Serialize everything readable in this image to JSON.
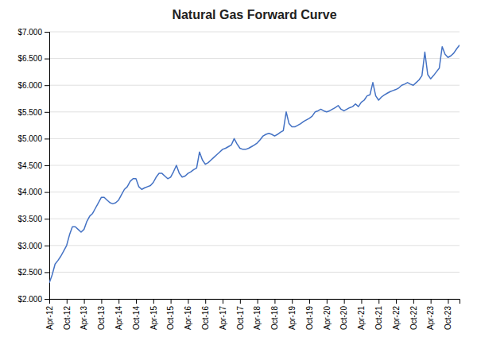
{
  "chart_data": {
    "type": "line",
    "title": "Natural Gas Forward Curve",
    "color": "#4472C4",
    "categories": [
      "Apr-12",
      null,
      null,
      null,
      null,
      null,
      "Oct-12",
      null,
      null,
      null,
      null,
      null,
      "Apr-13",
      null,
      null,
      null,
      null,
      null,
      "Oct-13",
      null,
      null,
      null,
      null,
      null,
      "Apr-14",
      null,
      null,
      null,
      null,
      null,
      "Oct-14",
      null,
      null,
      null,
      null,
      null,
      "Apr-15",
      null,
      null,
      null,
      null,
      null,
      "Oct-15",
      null,
      null,
      null,
      null,
      null,
      "Apr-16",
      null,
      null,
      null,
      null,
      null,
      "Oct-16",
      null,
      null,
      null,
      null,
      null,
      "Apr-17",
      null,
      null,
      null,
      null,
      null,
      "Oct-17",
      null,
      null,
      null,
      null,
      null,
      "Apr-18",
      null,
      null,
      null,
      null,
      null,
      "Oct-18",
      null,
      null,
      null,
      null,
      null,
      "Apr-19",
      null,
      null,
      null,
      null,
      null,
      "Oct-19",
      null,
      null,
      null,
      null,
      null,
      "Apr-20",
      null,
      null,
      null,
      null,
      null,
      "Oct-20",
      null,
      null,
      null,
      null,
      null,
      "Apr-21",
      null,
      null,
      null,
      null,
      null,
      "Oct-21",
      null,
      null,
      null,
      null,
      null,
      "Apr-22",
      null,
      null,
      null,
      null,
      null,
      "Oct-22",
      null,
      null,
      null,
      null,
      null,
      "Apr-23",
      null,
      null,
      null,
      null,
      null,
      "Oct-23",
      null,
      null,
      null,
      null
    ],
    "values": [
      2.3,
      2.45,
      2.65,
      2.72,
      2.8,
      2.9,
      3.0,
      3.2,
      3.35,
      3.35,
      3.3,
      3.25,
      3.3,
      3.45,
      3.55,
      3.6,
      3.7,
      3.8,
      3.9,
      3.9,
      3.85,
      3.8,
      3.78,
      3.8,
      3.85,
      3.95,
      4.05,
      4.1,
      4.2,
      4.25,
      4.25,
      4.1,
      4.05,
      4.08,
      4.1,
      4.12,
      4.18,
      4.28,
      4.35,
      4.35,
      4.3,
      4.25,
      4.28,
      4.38,
      4.5,
      4.35,
      4.28,
      4.3,
      4.35,
      4.38,
      4.42,
      4.45,
      4.75,
      4.6,
      4.52,
      4.55,
      4.6,
      4.65,
      4.7,
      4.75,
      4.8,
      4.82,
      4.85,
      4.88,
      5.0,
      4.9,
      4.82,
      4.8,
      4.8,
      4.82,
      4.85,
      4.88,
      4.92,
      4.98,
      5.05,
      5.08,
      5.1,
      5.08,
      5.05,
      5.08,
      5.12,
      5.15,
      5.5,
      5.28,
      5.22,
      5.22,
      5.25,
      5.28,
      5.32,
      5.35,
      5.38,
      5.42,
      5.5,
      5.52,
      5.55,
      5.52,
      5.5,
      5.52,
      5.55,
      5.58,
      5.62,
      5.55,
      5.52,
      5.55,
      5.58,
      5.6,
      5.65,
      5.6,
      5.68,
      5.72,
      5.8,
      5.82,
      6.05,
      5.8,
      5.72,
      5.78,
      5.82,
      5.85,
      5.88,
      5.9,
      5.92,
      5.95,
      6.0,
      6.02,
      6.05,
      6.02,
      6.0,
      6.05,
      6.1,
      6.18,
      6.62,
      6.2,
      6.12,
      6.18,
      6.25,
      6.32,
      6.72,
      6.58,
      6.52,
      6.55,
      6.6,
      6.68,
      6.75
    ],
    "ylim": [
      2.0,
      7.0
    ],
    "yticks": [
      {
        "value": 2.0,
        "label": "$2.000"
      },
      {
        "value": 2.5,
        "label": "$2.500"
      },
      {
        "value": 3.0,
        "label": "$3.000"
      },
      {
        "value": 3.5,
        "label": "$3.500"
      },
      {
        "value": 4.0,
        "label": "$4.000"
      },
      {
        "value": 4.5,
        "label": "$4.500"
      },
      {
        "value": 5.0,
        "label": "$5.000"
      },
      {
        "value": 5.5,
        "label": "$5.500"
      },
      {
        "value": 6.0,
        "label": "$6.000"
      },
      {
        "value": 6.5,
        "label": "$6.500"
      },
      {
        "value": 7.0,
        "label": "$7.000"
      }
    ],
    "grid": true
  }
}
